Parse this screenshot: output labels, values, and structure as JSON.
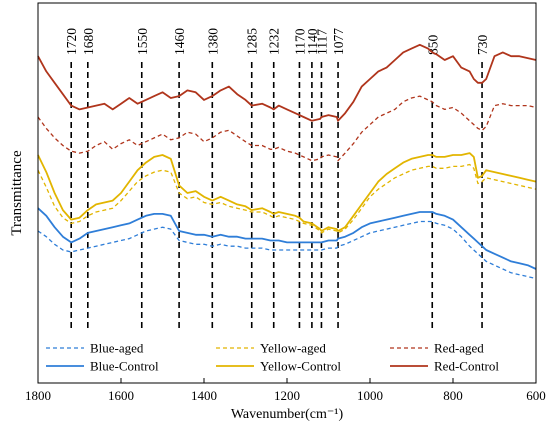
{
  "chart_data": {
    "type": "line",
    "xlabel": "Wavenumber(cm⁻¹)",
    "ylabel": "Transmittance",
    "xlim": [
      1800,
      600
    ],
    "x_reversed": true,
    "x_ticks": [
      1800,
      1600,
      1400,
      1200,
      1000,
      800,
      600
    ],
    "annotations": [
      1720,
      1680,
      1550,
      1460,
      1380,
      1285,
      1232,
      1170,
      1140,
      1117,
      1077,
      850,
      730
    ],
    "legend_position": "bottom",
    "series": [
      {
        "name": "Red-Control",
        "color": "#b0351c",
        "style": "solid",
        "x": [
          1800,
          1780,
          1760,
          1740,
          1720,
          1700,
          1680,
          1660,
          1640,
          1620,
          1600,
          1580,
          1560,
          1540,
          1520,
          1500,
          1480,
          1460,
          1440,
          1420,
          1400,
          1380,
          1360,
          1340,
          1320,
          1300,
          1285,
          1260,
          1240,
          1232,
          1220,
          1200,
          1180,
          1170,
          1160,
          1140,
          1120,
          1117,
          1100,
          1080,
          1077,
          1060,
          1040,
          1020,
          1000,
          980,
          960,
          940,
          920,
          900,
          880,
          860,
          850,
          840,
          820,
          800,
          780,
          760,
          750,
          740,
          730,
          720,
          700,
          680,
          660,
          640,
          620,
          600
        ],
        "y": [
          0.86,
          0.82,
          0.79,
          0.76,
          0.73,
          0.72,
          0.725,
          0.73,
          0.735,
          0.72,
          0.735,
          0.75,
          0.735,
          0.745,
          0.755,
          0.765,
          0.75,
          0.755,
          0.77,
          0.765,
          0.745,
          0.755,
          0.77,
          0.78,
          0.76,
          0.745,
          0.73,
          0.735,
          0.725,
          0.72,
          0.73,
          0.72,
          0.71,
          0.705,
          0.7,
          0.69,
          0.695,
          0.7,
          0.705,
          0.7,
          0.69,
          0.71,
          0.74,
          0.78,
          0.8,
          0.82,
          0.83,
          0.85,
          0.87,
          0.88,
          0.89,
          0.88,
          0.87,
          0.865,
          0.85,
          0.86,
          0.83,
          0.82,
          0.8,
          0.79,
          0.79,
          0.8,
          0.86,
          0.87,
          0.86,
          0.86,
          0.855,
          0.85
        ]
      },
      {
        "name": "Red-aged",
        "color": "#b0351c",
        "style": "dashed",
        "x": [
          1800,
          1780,
          1760,
          1740,
          1720,
          1700,
          1680,
          1660,
          1640,
          1620,
          1600,
          1580,
          1560,
          1540,
          1520,
          1500,
          1480,
          1460,
          1440,
          1420,
          1400,
          1380,
          1360,
          1340,
          1320,
          1300,
          1285,
          1260,
          1240,
          1232,
          1220,
          1200,
          1180,
          1170,
          1160,
          1140,
          1120,
          1117,
          1100,
          1080,
          1077,
          1060,
          1040,
          1020,
          1000,
          980,
          960,
          940,
          920,
          900,
          880,
          860,
          850,
          840,
          820,
          800,
          780,
          760,
          750,
          740,
          730,
          720,
          700,
          680,
          660,
          640,
          620,
          600
        ],
        "y": [
          0.7,
          0.67,
          0.645,
          0.625,
          0.61,
          0.605,
          0.61,
          0.625,
          0.635,
          0.615,
          0.63,
          0.64,
          0.625,
          0.635,
          0.645,
          0.655,
          0.64,
          0.645,
          0.66,
          0.655,
          0.635,
          0.645,
          0.66,
          0.665,
          0.65,
          0.635,
          0.625,
          0.625,
          0.615,
          0.615,
          0.62,
          0.61,
          0.605,
          0.6,
          0.595,
          0.585,
          0.59,
          0.595,
          0.6,
          0.595,
          0.585,
          0.605,
          0.63,
          0.66,
          0.68,
          0.7,
          0.71,
          0.72,
          0.74,
          0.75,
          0.755,
          0.745,
          0.74,
          0.73,
          0.72,
          0.725,
          0.71,
          0.69,
          0.68,
          0.67,
          0.665,
          0.675,
          0.73,
          0.735,
          0.73,
          0.73,
          0.73,
          0.725
        ]
      },
      {
        "name": "Yellow-Control",
        "color": "#e2b500",
        "style": "solid",
        "x": [
          1800,
          1780,
          1760,
          1740,
          1720,
          1700,
          1680,
          1660,
          1640,
          1620,
          1600,
          1580,
          1560,
          1540,
          1520,
          1500,
          1480,
          1460,
          1440,
          1420,
          1400,
          1380,
          1360,
          1340,
          1320,
          1300,
          1285,
          1260,
          1240,
          1232,
          1220,
          1200,
          1180,
          1170,
          1160,
          1140,
          1120,
          1117,
          1100,
          1080,
          1077,
          1060,
          1040,
          1020,
          1000,
          980,
          960,
          940,
          920,
          900,
          880,
          860,
          850,
          840,
          820,
          800,
          780,
          760,
          750,
          740,
          730,
          720,
          700,
          680,
          660,
          640,
          620,
          600
        ],
        "y": [
          0.6,
          0.555,
          0.5,
          0.455,
          0.43,
          0.435,
          0.455,
          0.47,
          0.475,
          0.48,
          0.5,
          0.53,
          0.56,
          0.58,
          0.595,
          0.6,
          0.59,
          0.52,
          0.5,
          0.505,
          0.49,
          0.48,
          0.49,
          0.48,
          0.47,
          0.465,
          0.455,
          0.46,
          0.45,
          0.445,
          0.45,
          0.445,
          0.44,
          0.435,
          0.425,
          0.42,
          0.405,
          0.4,
          0.41,
          0.405,
          0.4,
          0.41,
          0.44,
          0.47,
          0.5,
          0.53,
          0.55,
          0.565,
          0.58,
          0.59,
          0.595,
          0.6,
          0.6,
          0.595,
          0.595,
          0.6,
          0.6,
          0.605,
          0.595,
          0.54,
          0.545,
          0.56,
          0.555,
          0.55,
          0.545,
          0.54,
          0.535,
          0.53
        ]
      },
      {
        "name": "Yellow-aged",
        "color": "#e2b500",
        "style": "dashed",
        "x": [
          1800,
          1780,
          1760,
          1740,
          1720,
          1700,
          1680,
          1660,
          1640,
          1620,
          1600,
          1580,
          1560,
          1540,
          1520,
          1500,
          1480,
          1460,
          1440,
          1420,
          1400,
          1380,
          1360,
          1340,
          1320,
          1300,
          1285,
          1260,
          1240,
          1232,
          1220,
          1200,
          1180,
          1170,
          1160,
          1140,
          1120,
          1117,
          1100,
          1080,
          1077,
          1060,
          1040,
          1020,
          1000,
          980,
          960,
          940,
          920,
          900,
          880,
          860,
          850,
          840,
          820,
          800,
          780,
          760,
          750,
          740,
          730,
          720,
          700,
          680,
          660,
          640,
          620,
          600
        ],
        "y": [
          0.56,
          0.515,
          0.465,
          0.435,
          0.42,
          0.425,
          0.44,
          0.45,
          0.455,
          0.46,
          0.48,
          0.505,
          0.53,
          0.545,
          0.555,
          0.56,
          0.555,
          0.5,
          0.485,
          0.49,
          0.475,
          0.47,
          0.475,
          0.465,
          0.46,
          0.455,
          0.45,
          0.45,
          0.44,
          0.435,
          0.44,
          0.435,
          0.43,
          0.425,
          0.42,
          0.415,
          0.4,
          0.395,
          0.405,
          0.4,
          0.395,
          0.405,
          0.43,
          0.46,
          0.49,
          0.51,
          0.525,
          0.54,
          0.55,
          0.56,
          0.565,
          0.57,
          0.57,
          0.565,
          0.565,
          0.57,
          0.57,
          0.575,
          0.565,
          0.525,
          0.53,
          0.54,
          0.535,
          0.53,
          0.525,
          0.52,
          0.515,
          0.51
        ]
      },
      {
        "name": "Blue-Control",
        "color": "#2f7ed8",
        "style": "solid",
        "x": [
          1800,
          1780,
          1760,
          1740,
          1720,
          1700,
          1680,
          1660,
          1640,
          1620,
          1600,
          1580,
          1560,
          1540,
          1520,
          1500,
          1480,
          1460,
          1440,
          1420,
          1400,
          1380,
          1360,
          1340,
          1320,
          1300,
          1285,
          1260,
          1240,
          1232,
          1220,
          1200,
          1180,
          1170,
          1160,
          1140,
          1120,
          1117,
          1100,
          1080,
          1077,
          1060,
          1040,
          1020,
          1000,
          980,
          960,
          940,
          920,
          900,
          880,
          860,
          850,
          840,
          820,
          800,
          780,
          760,
          750,
          740,
          730,
          720,
          700,
          680,
          660,
          640,
          620,
          600
        ],
        "y": [
          0.46,
          0.44,
          0.41,
          0.385,
          0.37,
          0.38,
          0.395,
          0.4,
          0.405,
          0.41,
          0.415,
          0.42,
          0.43,
          0.44,
          0.445,
          0.445,
          0.44,
          0.4,
          0.395,
          0.39,
          0.39,
          0.385,
          0.39,
          0.385,
          0.385,
          0.38,
          0.38,
          0.38,
          0.375,
          0.375,
          0.375,
          0.37,
          0.37,
          0.37,
          0.37,
          0.37,
          0.37,
          0.37,
          0.375,
          0.375,
          0.38,
          0.385,
          0.395,
          0.41,
          0.42,
          0.425,
          0.43,
          0.435,
          0.44,
          0.445,
          0.45,
          0.45,
          0.45,
          0.445,
          0.44,
          0.43,
          0.41,
          0.39,
          0.38,
          0.37,
          0.36,
          0.35,
          0.34,
          0.33,
          0.32,
          0.315,
          0.31,
          0.3
        ]
      },
      {
        "name": "Blue-aged",
        "color": "#2f7ed8",
        "style": "dashed",
        "x": [
          1800,
          1780,
          1760,
          1740,
          1720,
          1700,
          1680,
          1660,
          1640,
          1620,
          1600,
          1580,
          1560,
          1540,
          1520,
          1500,
          1480,
          1460,
          1440,
          1420,
          1400,
          1380,
          1360,
          1340,
          1320,
          1300,
          1285,
          1260,
          1240,
          1232,
          1220,
          1200,
          1180,
          1170,
          1160,
          1140,
          1120,
          1117,
          1100,
          1080,
          1077,
          1060,
          1040,
          1020,
          1000,
          980,
          960,
          940,
          920,
          900,
          880,
          860,
          850,
          840,
          820,
          800,
          780,
          760,
          750,
          740,
          730,
          720,
          700,
          680,
          660,
          640,
          620,
          600
        ],
        "y": [
          0.4,
          0.385,
          0.365,
          0.35,
          0.345,
          0.35,
          0.355,
          0.36,
          0.365,
          0.37,
          0.375,
          0.38,
          0.39,
          0.4,
          0.405,
          0.41,
          0.405,
          0.375,
          0.37,
          0.365,
          0.365,
          0.36,
          0.365,
          0.36,
          0.36,
          0.355,
          0.355,
          0.355,
          0.35,
          0.35,
          0.35,
          0.35,
          0.35,
          0.35,
          0.35,
          0.35,
          0.35,
          0.35,
          0.355,
          0.355,
          0.36,
          0.365,
          0.375,
          0.385,
          0.395,
          0.4,
          0.405,
          0.41,
          0.415,
          0.42,
          0.425,
          0.425,
          0.425,
          0.42,
          0.415,
          0.405,
          0.385,
          0.36,
          0.35,
          0.34,
          0.33,
          0.32,
          0.31,
          0.3,
          0.29,
          0.285,
          0.28,
          0.275
        ]
      }
    ],
    "legend": [
      {
        "label": "Blue-aged",
        "color": "#2f7ed8",
        "style": "dashed"
      },
      {
        "label": "Yellow-aged",
        "color": "#e2b500",
        "style": "dashed"
      },
      {
        "label": "Red-aged",
        "color": "#b0351c",
        "style": "dashed"
      },
      {
        "label": "Blue-Control",
        "color": "#2f7ed8",
        "style": "solid"
      },
      {
        "label": "Yellow-Control",
        "color": "#e2b500",
        "style": "solid"
      },
      {
        "label": "Red-Control",
        "color": "#b0351c",
        "style": "solid"
      }
    ]
  }
}
